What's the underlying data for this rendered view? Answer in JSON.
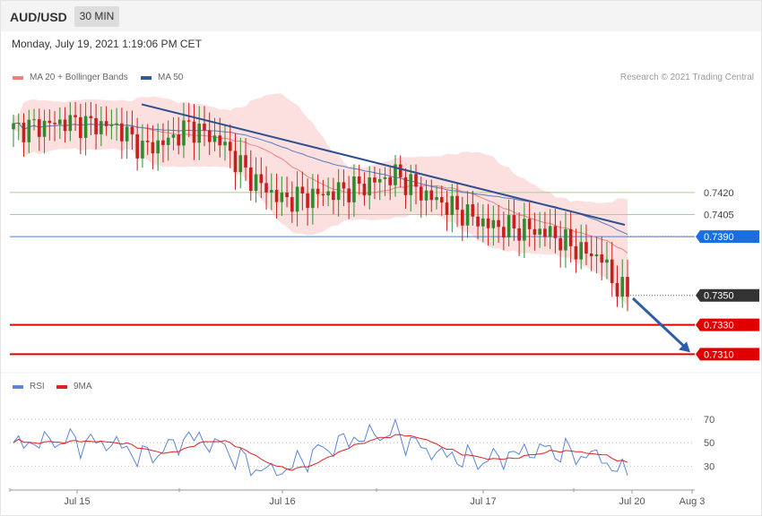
{
  "header": {
    "symbol": "AUD/USD",
    "timeframe": "30 MIN",
    "datetime": "Monday, July 19, 2021 1:19:06 PM CET"
  },
  "legend": {
    "ma20_label": "MA 20 + Bollinger Bands",
    "ma20_color": "#f08080",
    "ma50_label": "MA 50",
    "ma50_color": "#2e5c9a",
    "copyright": "Research © 2021 Trading Central"
  },
  "rsi_legend": {
    "rsi_label": "RSI",
    "rsi_color": "#5b84d6",
    "ma_label": "9MA",
    "ma_color": "#e02020"
  },
  "colors": {
    "bull": "#2e8b2e",
    "bear": "#c81e1e",
    "band": "#fbdada",
    "resistance": "#a8d08d",
    "support": "#e00000",
    "pivot": "#4a7fd4",
    "trend": "#2e4f8f"
  },
  "chart_data": {
    "type": "candlestick",
    "price_axis": {
      "min": 0.7295,
      "max": 0.749
    },
    "levels": [
      {
        "value": 0.742,
        "label": "0.7420",
        "kind": "resistance"
      },
      {
        "value": 0.7405,
        "label": "0.7405",
        "kind": "resistance"
      },
      {
        "value": 0.739,
        "label": "0.7390",
        "kind": "pivot"
      },
      {
        "value": 0.735,
        "label": "0.7350",
        "kind": "last"
      },
      {
        "value": 0.733,
        "label": "0.7330",
        "kind": "support"
      },
      {
        "value": 0.731,
        "label": "0.7310",
        "kind": "support"
      }
    ],
    "trendline": {
      "from_bar": 0,
      "to_bar": 1,
      "from_value": 0.748,
      "to_value": 0.7398
    },
    "forecast_arrow": {
      "from_value": 0.7348,
      "to_value": 0.731
    },
    "x_labels": [
      "Jul 15",
      "Jul 16",
      "Jul 17",
      "Jul 20",
      "Aug 3"
    ],
    "rsi": {
      "ticks": [
        70,
        50,
        30
      ],
      "min": 15,
      "max": 80
    }
  }
}
